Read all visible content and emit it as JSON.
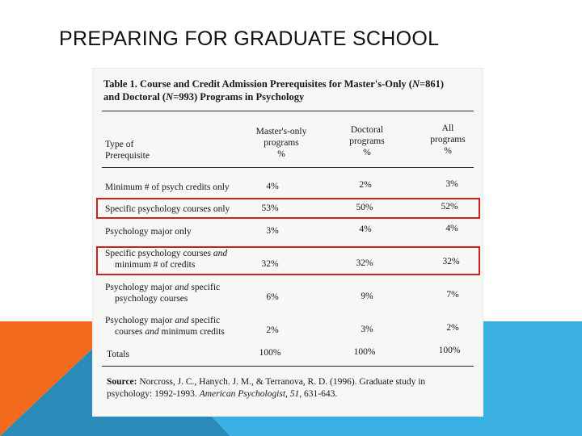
{
  "slide": {
    "title": "PREPARING FOR GRADUATE SCHOOL",
    "colors": {
      "orange": "#f26b1d",
      "blue_light": "#3bb0e3",
      "blue_dark": "#2a8ab8"
    }
  },
  "table": {
    "title_pre": "Table 1. Course and Credit Admission Prerequisites for Master's-Only (",
    "n1": "N",
    "title_mid1": "=861) and Doctoral (",
    "n2": "N",
    "title_post": "=993) Programs in Psychology",
    "headers": {
      "type": [
        "Type of",
        "Prerequisite"
      ],
      "masters": [
        "Master's-only",
        "programs",
        "%"
      ],
      "doctoral": [
        "Doctoral",
        "programs",
        "%"
      ],
      "all": [
        "All",
        "programs",
        "%"
      ]
    },
    "rows": [
      {
        "type": "Minimum # of psych credits only",
        "masters": "4%",
        "doctoral": "2%",
        "all": "3%"
      },
      {
        "type": "Specific psychology courses only",
        "masters": "53%",
        "doctoral": "50%",
        "all": "52%"
      },
      {
        "type": "Psychology major only",
        "masters": "3%",
        "doctoral": "4%",
        "all": "4%"
      },
      {
        "type_a": "Specific psychology courses ",
        "type_a_em": "and",
        "type_b": "minimum # of credits",
        "masters": "32%",
        "doctoral": "32%",
        "all": "32%"
      },
      {
        "type_a": "Psychology major ",
        "type_a_em": "and",
        "type_a_post": " specific",
        "type_b": "psychology courses",
        "masters": "6%",
        "doctoral": "9%",
        "all": "7%"
      },
      {
        "type_a": "Psychology major ",
        "type_a_em": "and",
        "type_a_post": " specific",
        "type_b_pre": "courses ",
        "type_b_em": "and",
        "type_b_post": " minimum credits",
        "masters": "2%",
        "doctoral": "3%",
        "all": "2%"
      },
      {
        "type": "Totals",
        "masters": "100%",
        "doctoral": "100%",
        "all": "100%"
      }
    ],
    "source": {
      "label": "Source:",
      "text": " Norcross, J. C., Hanych. J. M., & Terranova, R. D. (1996). Graduate study in psychology: 1992-1993. ",
      "journal": "American Psychologist, 51,",
      "pages": " 631-643."
    }
  }
}
